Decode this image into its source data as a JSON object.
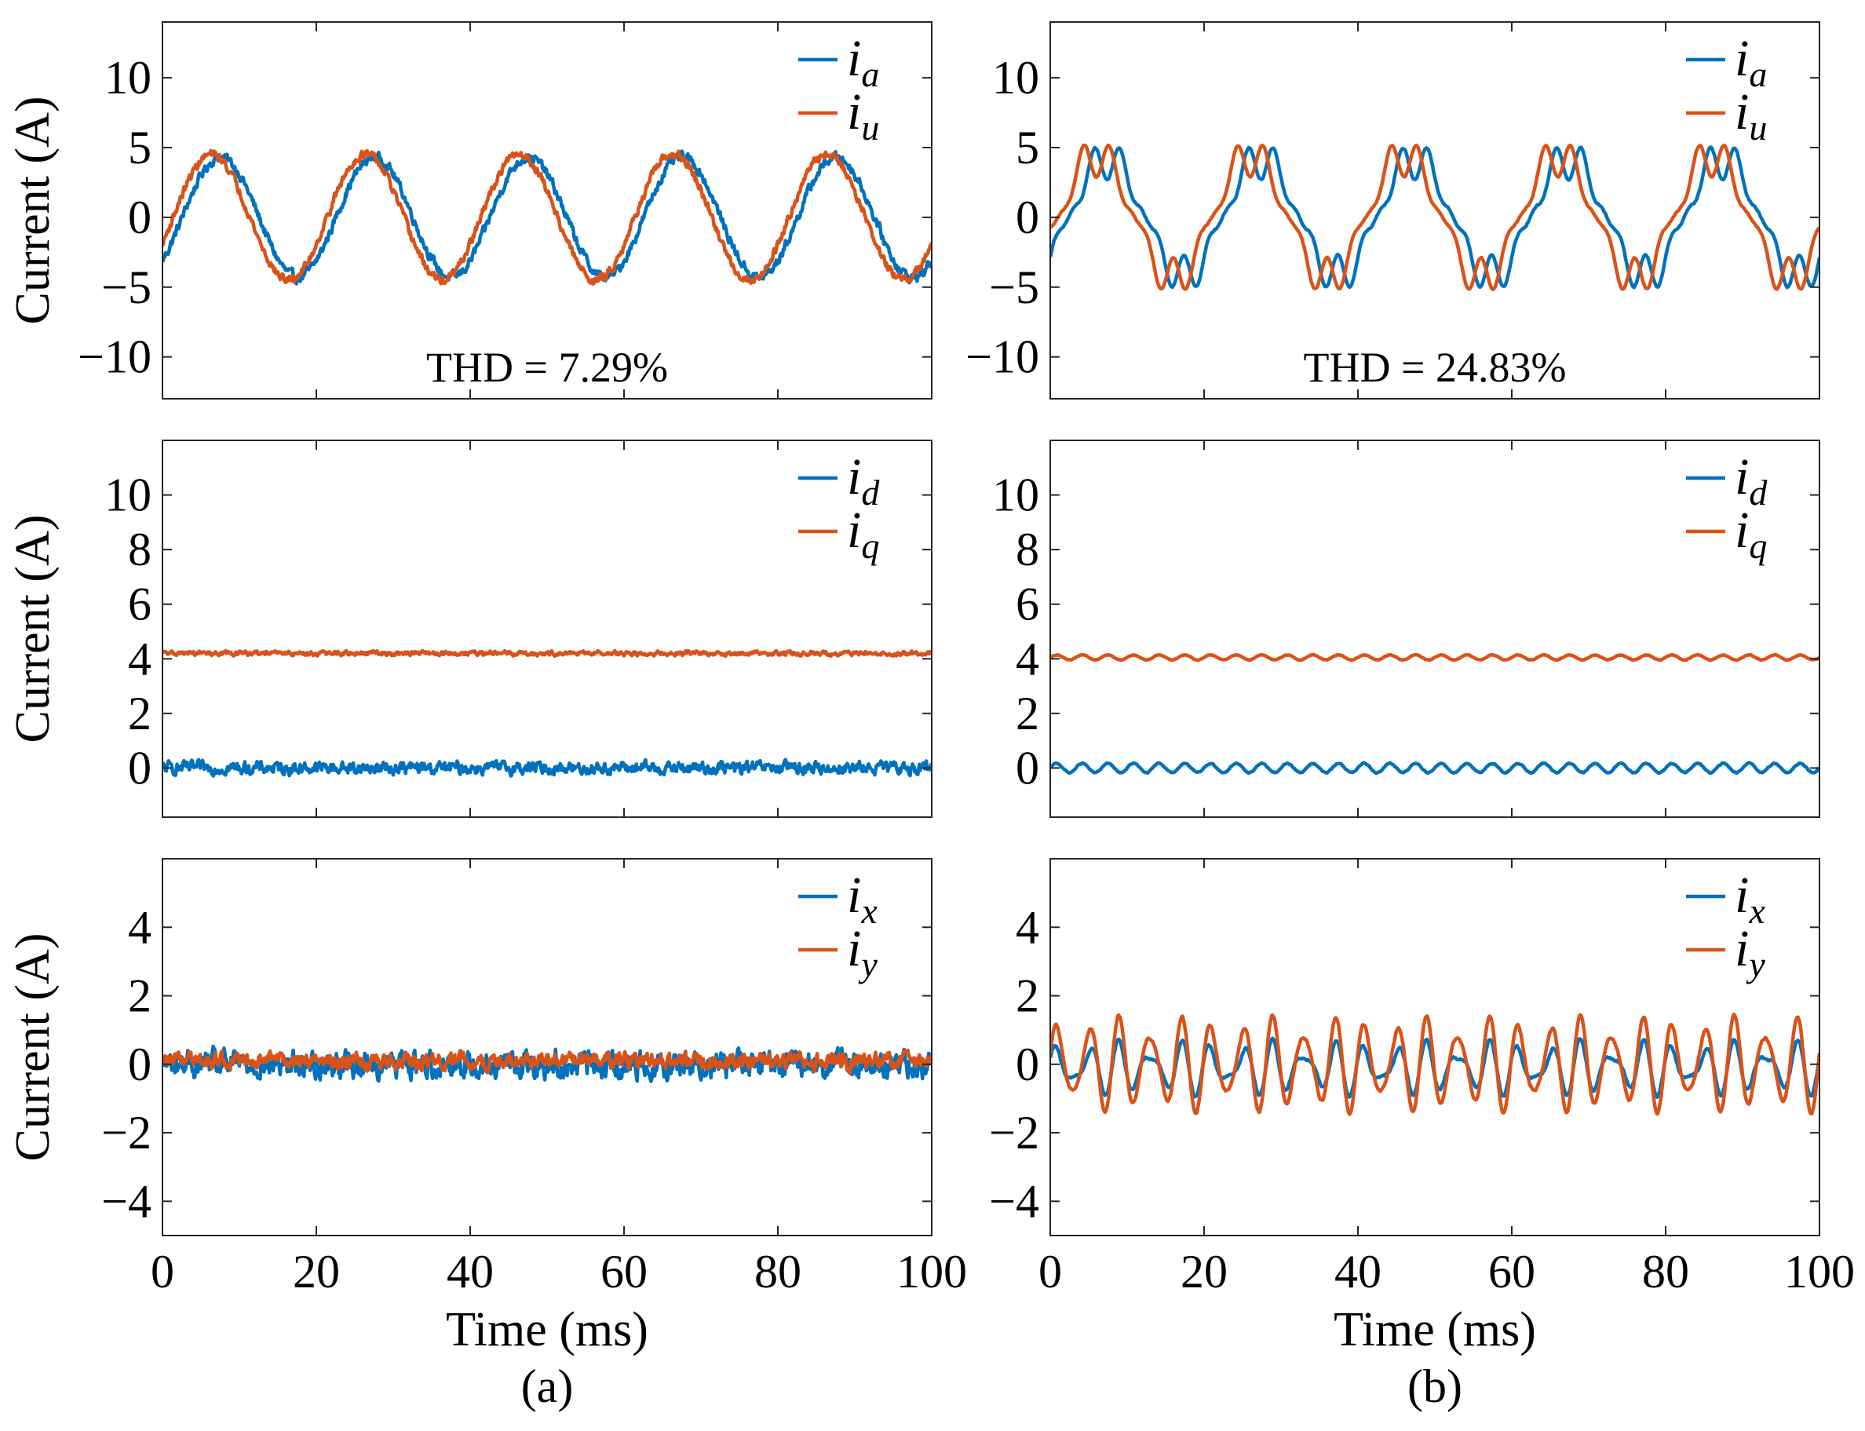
{
  "chart_data": [
    {
      "id": "a1",
      "type": "line",
      "title": "",
      "xlabel": "",
      "ylabel": "Current (A)",
      "xlim": [
        0,
        100
      ],
      "ylim": [
        -13,
        14
      ],
      "yticks": [
        -10,
        -5,
        0,
        5,
        10
      ],
      "ytick_labels": [
        "−10",
        "−5",
        "0",
        "5",
        "10"
      ],
      "xticks": [
        0,
        20,
        40,
        60,
        80,
        100
      ],
      "xtick_labels": [],
      "legend_position": "top-right",
      "annotation": "THD = 7.29%",
      "series": [
        {
          "name": "ia",
          "label_main": "i",
          "label_sub": "a",
          "color": "#0072BD",
          "model": {
            "kind": "sine",
            "amp": 4.3,
            "freq_hz": 50,
            "phase_deg": -46,
            "offset": 0,
            "noise": 0.35
          }
        },
        {
          "name": "iu",
          "label_main": "i",
          "label_sub": "u",
          "color": "#D95319",
          "model": {
            "kind": "sine",
            "amp": 4.5,
            "freq_hz": 50,
            "phase_deg": -25,
            "offset": 0,
            "noise": 0.3
          }
        }
      ]
    },
    {
      "id": "b1",
      "type": "line",
      "title": "",
      "xlabel": "",
      "ylabel": "",
      "xlim": [
        0,
        100
      ],
      "ylim": [
        -13,
        14
      ],
      "yticks": [
        -10,
        -5,
        0,
        5,
        10
      ],
      "ytick_labels": [
        "−10",
        "−5",
        "0",
        "5",
        "10"
      ],
      "xticks": [
        0,
        20,
        40,
        60,
        80,
        100
      ],
      "xtick_labels": [],
      "legend_position": "top-right",
      "annotation": "THD = 24.83%",
      "series": [
        {
          "name": "ia",
          "label_main": "i",
          "label_sub": "a",
          "color": "#0072BD",
          "model": {
            "kind": "sine",
            "amp": 4.2,
            "freq_hz": 50,
            "phase_deg": -43,
            "offset": 0,
            "h3_amp": 0,
            "h5_amp": 0.9,
            "h5_phase_deg": 180,
            "h7_amp": 0.6,
            "h7_phase_deg": 0,
            "noise": 0.05
          }
        },
        {
          "name": "iu",
          "label_main": "i",
          "label_sub": "u",
          "color": "#D95319",
          "model": {
            "kind": "sine",
            "amp": 4.4,
            "freq_hz": 50,
            "phase_deg": -18,
            "offset": 0,
            "h5_amp": 1.0,
            "h5_phase_deg": 180,
            "h7_amp": 0.5,
            "h7_phase_deg": 0,
            "noise": 0.04
          }
        }
      ]
    },
    {
      "id": "a2",
      "type": "line",
      "title": "",
      "xlabel": "",
      "ylabel": "Current (A)",
      "xlim": [
        0,
        100
      ],
      "ylim": [
        -1.8,
        12
      ],
      "yticks": [
        0,
        2,
        4,
        6,
        8,
        10
      ],
      "ytick_labels": [
        "0",
        "2",
        "4",
        "6",
        "8",
        "10"
      ],
      "xticks": [
        0,
        20,
        40,
        60,
        80,
        100
      ],
      "xtick_labels": [],
      "legend_position": "top-right",
      "series": [
        {
          "name": "id",
          "label_main": "i",
          "label_sub": "d",
          "color": "#0072BD",
          "model": {
            "kind": "const",
            "offset": 0.0,
            "noise": 0.22
          }
        },
        {
          "name": "iq",
          "label_main": "i",
          "label_sub": "q",
          "color": "#D95319",
          "model": {
            "kind": "const",
            "offset": 4.2,
            "noise": 0.08
          }
        }
      ]
    },
    {
      "id": "b2",
      "type": "line",
      "title": "",
      "xlabel": "",
      "ylabel": "",
      "xlim": [
        0,
        100
      ],
      "ylim": [
        -1.8,
        12
      ],
      "yticks": [
        0,
        2,
        4,
        6,
        8,
        10
      ],
      "ytick_labels": [
        "0",
        "2",
        "4",
        "6",
        "8",
        "10"
      ],
      "xticks": [
        0,
        20,
        40,
        60,
        80,
        100
      ],
      "xtick_labels": [],
      "legend_position": "top-right",
      "series": [
        {
          "name": "id",
          "label_main": "i",
          "label_sub": "d",
          "color": "#0072BD",
          "model": {
            "kind": "ripple",
            "offset": 0.0,
            "amp": 0.17,
            "freq_hz": 300,
            "noise": 0.02
          }
        },
        {
          "name": "iq",
          "label_main": "i",
          "label_sub": "q",
          "color": "#D95319",
          "model": {
            "kind": "ripple",
            "offset": 4.05,
            "amp": 0.09,
            "freq_hz": 300,
            "noise": 0.01
          }
        }
      ]
    },
    {
      "id": "a3",
      "type": "line",
      "title": "",
      "xlabel": "Time (ms)",
      "ylabel": "Current (A)",
      "xlim": [
        0,
        100
      ],
      "ylim": [
        -5,
        6
      ],
      "yticks": [
        -4,
        -2,
        0,
        2,
        4
      ],
      "ytick_labels": [
        "−4",
        "−2",
        "0",
        "2",
        "4"
      ],
      "xticks": [
        0,
        20,
        40,
        60,
        80,
        100
      ],
      "xtick_labels": [
        "0",
        "20",
        "40",
        "60",
        "80",
        "100"
      ],
      "legend_position": "top-right",
      "panel_label": "(a)",
      "series": [
        {
          "name": "ix",
          "label_main": "i",
          "label_sub": "x",
          "color": "#0072BD",
          "model": {
            "kind": "const",
            "offset": 0.0,
            "noise": 0.38
          }
        },
        {
          "name": "iy",
          "label_main": "i",
          "label_sub": "y",
          "color": "#D95319",
          "model": {
            "kind": "const",
            "offset": 0.1,
            "noise": 0.22
          }
        }
      ]
    },
    {
      "id": "b3",
      "type": "line",
      "title": "",
      "xlabel": "Time (ms)",
      "ylabel": "",
      "xlim": [
        0,
        100
      ],
      "ylim": [
        -5,
        6
      ],
      "yticks": [
        -4,
        -2,
        0,
        2,
        4
      ],
      "ytick_labels": [
        "−4",
        "−2",
        "0",
        "2",
        "4"
      ],
      "xticks": [
        0,
        20,
        40,
        60,
        80,
        100
      ],
      "xtick_labels": [
        "0",
        "20",
        "40",
        "60",
        "80",
        "100"
      ],
      "legend_position": "top-right",
      "panel_label": "(b)",
      "series": [
        {
          "name": "ix",
          "label_main": "i",
          "label_sub": "x",
          "color": "#0072BD",
          "model": {
            "kind": "ripple",
            "offset": -0.1,
            "amp": 0.55,
            "freq_hz": 250,
            "amp2": 0.3,
            "freq2_hz": 350,
            "noise": 0.03
          }
        },
        {
          "name": "iy",
          "label_main": "i",
          "label_sub": "y",
          "color": "#D95319",
          "model": {
            "kind": "ripple",
            "offset": 0.0,
            "amp": 1.1,
            "freq_hz": 250,
            "amp2": 0.35,
            "freq2_hz": 350,
            "noise": 0.03
          }
        }
      ]
    }
  ]
}
